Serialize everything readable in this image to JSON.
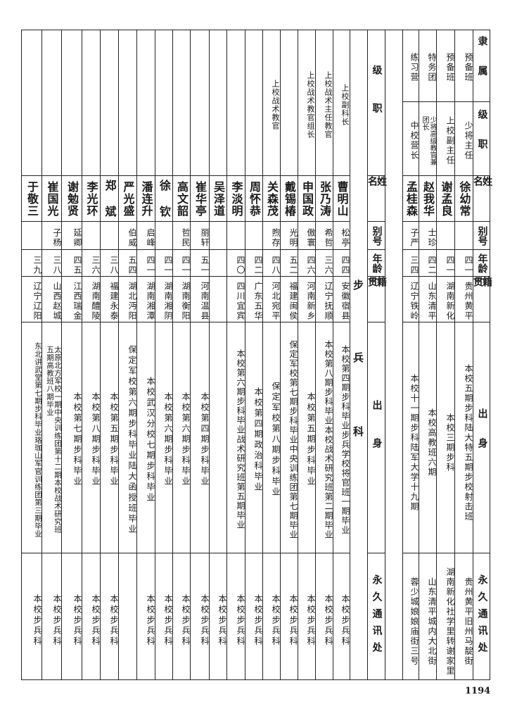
{
  "section1": {
    "headers": [
      "隶属",
      "级职",
      "姓名",
      "别号",
      "年龄",
      "籍贯",
      "出身",
      "永久通讯处"
    ],
    "rows": [
      {
        "unit": "预备班",
        "rank": "少将主任",
        "name": "徐幼常",
        "alias": "",
        "age": "四一",
        "origin": "贵州黄平",
        "education": "本校五期步科陆大特五期步校射击班",
        "address": "贵州黄平旧州马靛街"
      },
      {
        "unit": "预备班",
        "rank": "上校副主任",
        "name": "谢孟良",
        "alias": "",
        "age": "四一",
        "origin": "湖南新化",
        "education": "本校三期步科",
        "address": "湖南新化社学里转谢家里"
      },
      {
        "unit": "特务团",
        "rank": "少将高级教官兼\n团长",
        "name": "赵我华",
        "alias": "士珍",
        "age": "四二",
        "origin": "山东清平",
        "education": "本校高教班六期",
        "address": "山东清平城内大北街"
      },
      {
        "unit": "练习营",
        "rank": "中校营长",
        "name": "孟桂森",
        "alias": "子严",
        "age": "三四",
        "origin": "辽宁铁岭",
        "education": "本校十一期步科陆军大学十九期",
        "address": "蓉少城娘娘庙街三号"
      }
    ]
  },
  "section2": {
    "category": [
      "步",
      "兵",
      "科"
    ],
    "headers": [
      "级职",
      "姓名",
      "别号",
      "年龄",
      "籍贯",
      "出身",
      "永久通讯处"
    ],
    "rows": [
      {
        "rank": "上校副科长",
        "name": "曹明山",
        "alias": "松亭",
        "age": "四四",
        "origin": "安徽宿县",
        "education": "本校第四期步科毕业步兵学校将官班一期毕业",
        "address": "本校步兵科"
      },
      {
        "rank": "上校战术主任教官",
        "name": "张乃涛",
        "alias": "希哲",
        "age": "三六",
        "origin": "辽宁抚顺",
        "education": "本校第八期步科毕业本校战术研究班第二期毕业",
        "address": "本校步兵科"
      },
      {
        "rank": "上校战术教官组长",
        "name": "申国政",
        "alias": "傲寰",
        "age": "四六",
        "origin": "河南新乡",
        "education": "本校第五期步科毕业",
        "address": "本校步兵科"
      },
      {
        "rank": "",
        "name": "戴锡椿",
        "alias": "光明",
        "age": "五二",
        "origin": "福建闽侯",
        "education": "保定军校第七期步科毕业中央训练团第七期毕业",
        "address": "本校步兵科"
      },
      {
        "rank": "上校战术教官",
        "name": "关森茂",
        "alias": "煦存",
        "age": "四八",
        "origin": "河北宛平",
        "education": "保定军校第八期步科毕业",
        "address": "本校步兵科"
      },
      {
        "rank": "",
        "name": "周怀恭",
        "alias": "",
        "age": "四二",
        "origin": "广东五华",
        "education": "本校第四期政治科毕业",
        "address": "本校步兵科"
      },
      {
        "rank": "",
        "name": "李淡明",
        "alias": "",
        "age": "四〇",
        "origin": "四川宜宾",
        "education": "本校第六期步科毕业战术研究班第五期毕业",
        "address": "本校步兵科"
      },
      {
        "rank": "",
        "name": "吴泽道",
        "alias": "",
        "age": "",
        "origin": "",
        "education": "",
        "address": "本校步兵科"
      },
      {
        "rank": "",
        "name": "崔华亭",
        "alias": "丽轩",
        "age": "五一",
        "origin": "河南温县",
        "education": "本校第四期步科毕业",
        "address": "本校步兵科"
      },
      {
        "rank": "",
        "name": "高文韶",
        "alias": "哲民",
        "age": "四一",
        "origin": "湖南衡阳",
        "education": "本校第六期步科毕业",
        "address": "本校步兵科"
      },
      {
        "rank": "",
        "name": "徐 钦",
        "alias": "",
        "age": "四一",
        "origin": "湖南湘阴",
        "education": "本校第六期步科毕业",
        "address": "本校步兵科"
      },
      {
        "rank": "",
        "name": "潘连升",
        "alias": "启峰",
        "age": "四一",
        "origin": "湖南湘潭",
        "education": "本校武汉分校七期步科毕业",
        "address": "本校步兵科"
      },
      {
        "rank": "",
        "name": "严光盛",
        "alias": "伯威",
        "age": "五四",
        "origin": "湖北沔阳",
        "education": "保定军校第六期步科毕业陆大函授班毕业",
        "address": ""
      },
      {
        "rank": "",
        "name": "郑 斌",
        "alias": "",
        "age": "三八",
        "origin": "福建永泰",
        "education": "本校第五期步科毕业",
        "address": "本校步兵科"
      },
      {
        "rank": "",
        "name": "李光环",
        "alias": "",
        "age": "三六",
        "origin": "湖南醴陵",
        "education": "本校第八期步科毕业",
        "address": "本校步兵科"
      },
      {
        "rank": "",
        "name": "谢勉贤",
        "alias": "延卿",
        "age": "四五",
        "origin": "江西瑞金",
        "education": "本校第七期步科毕业",
        "address": "本校步兵科"
      },
      {
        "rank": "",
        "name": "崔国光",
        "alias": "子杨",
        "age": "三八",
        "origin": "山西赵城",
        "education": "太原北方军校一期中央训练团第十二期本校战术研究班\n五期高教班八期毕业",
        "address": "本校步兵科"
      },
      {
        "rank": "",
        "name": "于敬三",
        "alias": "",
        "age": "三九",
        "origin": "辽宁辽阳",
        "education": "东北讲武堂第七期步科毕业珞珈山军官训练团第三期毕业",
        "address": "本校步兵科"
      }
    ]
  },
  "page_number": "1194"
}
